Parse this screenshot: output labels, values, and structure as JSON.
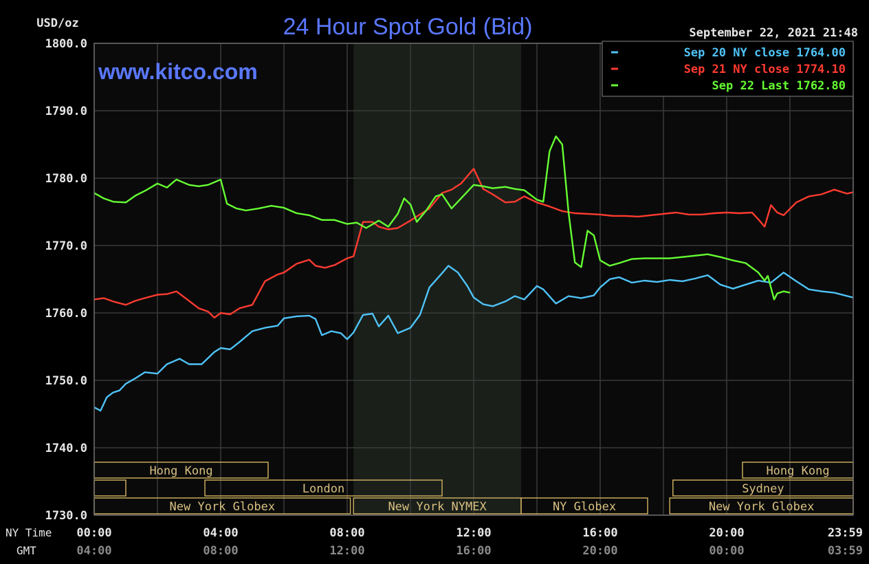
{
  "chart_data": {
    "type": "line",
    "title": "24 Hour Spot Gold (Bid)",
    "watermark": "www.kitco.com",
    "timestamp": "September 22, 2021 21:48",
    "ylabel": "USD/oz",
    "ylim": [
      1730,
      1800
    ],
    "yticks": [
      "1800.0",
      "1790.0",
      "1780.0",
      "1770.0",
      "1760.0",
      "1750.0",
      "1740.0",
      "1730.0"
    ],
    "x_row_label": "NY Time",
    "x_row2_label": "GMT",
    "x_range_hours": [
      0,
      24
    ],
    "ny_time_ticks": [
      "00:00",
      "04:00",
      "08:00",
      "12:00",
      "16:00",
      "20:00",
      "23:59"
    ],
    "gmt_ticks": [
      "04:00",
      "08:00",
      "12:00",
      "16:00",
      "20:00",
      "00:00",
      "03:59"
    ],
    "grid": true,
    "legend_position": "top-right",
    "shaded_session_hours": [
      8.2,
      13.5
    ],
    "legend": [
      {
        "label": "Sep 20 NY close 1764.00",
        "color": "#4fc3f7"
      },
      {
        "label": "Sep 21 NY close 1774.10",
        "color": "#ff3b30"
      },
      {
        "label": "Sep 22 Last 1762.80",
        "color": "#66ff33"
      }
    ],
    "series": [
      {
        "color": "#4fc3f7",
        "x": [
          0,
          0.2,
          0.4,
          0.6,
          0.8,
          1,
          1.3,
          1.6,
          2,
          2.3,
          2.7,
          3,
          3.4,
          3.8,
          4,
          4.3,
          4.6,
          5,
          5.4,
          5.8,
          6,
          6.4,
          6.8,
          7,
          7.2,
          7.5,
          7.8,
          8,
          8.2,
          8.5,
          8.8,
          9,
          9.3,
          9.6,
          10,
          10.3,
          10.6,
          11,
          11.2,
          11.5,
          11.8,
          12,
          12.3,
          12.6,
          13,
          13.3,
          13.6,
          14,
          14.2,
          14.6,
          15,
          15.4,
          15.8,
          16,
          16.3,
          16.6,
          17,
          17.4,
          17.8,
          18.2,
          18.6,
          19,
          19.4,
          19.8,
          20.2,
          20.6,
          21,
          21.4,
          21.8,
          22.2,
          22.6,
          23,
          23.4,
          23.99
        ],
        "y": [
          1746,
          1745.5,
          1747.5,
          1748.2,
          1748.5,
          1749.5,
          1750.3,
          1751.2,
          1751,
          1752.4,
          1753.2,
          1752.4,
          1752.4,
          1754.2,
          1754.8,
          1754.6,
          1755.7,
          1757.3,
          1757.8,
          1758.1,
          1759.2,
          1759.5,
          1759.6,
          1759.1,
          1756.7,
          1757.3,
          1757.0,
          1756.1,
          1757.1,
          1759.7,
          1759.9,
          1758.0,
          1759.6,
          1757.0,
          1757.8,
          1759.7,
          1763.8,
          1765.9,
          1767.0,
          1766.0,
          1764.0,
          1762.3,
          1761.3,
          1761.0,
          1761.7,
          1762.5,
          1762.0,
          1764.0,
          1763.5,
          1761.4,
          1762.5,
          1762.2,
          1762.6,
          1763.8,
          1765.0,
          1765.3,
          1764.5,
          1764.8,
          1764.6,
          1764.9,
          1764.7,
          1765.1,
          1765.6,
          1764.2,
          1763.6,
          1764.2,
          1764.8,
          1764.5,
          1766.0,
          1764.7,
          1763.5,
          1763.2,
          1763.0,
          1762.3
        ]
      },
      {
        "color": "#ff3b30",
        "x": [
          0,
          0.3,
          0.6,
          1,
          1.3,
          1.6,
          2,
          2.3,
          2.6,
          3,
          3.3,
          3.6,
          3.8,
          4,
          4.3,
          4.6,
          5,
          5.4,
          5.8,
          6,
          6.4,
          6.8,
          7,
          7.3,
          7.6,
          8,
          8.2,
          8.5,
          8.8,
          9,
          9.3,
          9.6,
          10,
          10.3,
          10.6,
          11,
          11.3,
          11.6,
          12,
          12.3,
          12.6,
          13,
          13.3,
          13.6,
          14,
          14.4,
          14.8,
          15.2,
          15.6,
          16,
          16.4,
          16.8,
          17.2,
          17.6,
          18,
          18.4,
          18.8,
          19.2,
          19.6,
          20,
          20.4,
          20.8,
          21,
          21.2,
          21.4,
          21.6,
          21.8,
          22.2,
          22.6,
          23,
          23.4,
          23.8,
          23.99
        ],
        "y": [
          1762,
          1762.2,
          1761.7,
          1761.2,
          1761.8,
          1762.2,
          1762.7,
          1762.8,
          1763.2,
          1761.8,
          1760.7,
          1760.2,
          1759.3,
          1760.0,
          1759.8,
          1760.7,
          1761.2,
          1764.7,
          1765.7,
          1766.0,
          1767.3,
          1767.9,
          1767.0,
          1766.7,
          1767.1,
          1768.1,
          1768.4,
          1773.5,
          1773.5,
          1772.8,
          1772.4,
          1772.6,
          1773.7,
          1774.6,
          1775.5,
          1777.8,
          1778.3,
          1779.2,
          1781.4,
          1778.4,
          1777.6,
          1776.4,
          1776.5,
          1777.3,
          1776.4,
          1775.8,
          1775.1,
          1774.8,
          1774.7,
          1774.6,
          1774.4,
          1774.4,
          1774.3,
          1774.5,
          1774.7,
          1774.9,
          1774.6,
          1774.6,
          1774.8,
          1774.9,
          1774.8,
          1774.9,
          1773.9,
          1772.8,
          1776.0,
          1774.9,
          1774.5,
          1776.4,
          1777.3,
          1777.6,
          1778.3,
          1777.7,
          1777.9
        ]
      },
      {
        "color": "#66ff33",
        "x": [
          0,
          0.3,
          0.6,
          1,
          1.3,
          1.6,
          2,
          2.3,
          2.6,
          3,
          3.3,
          3.6,
          4,
          4.2,
          4.5,
          4.8,
          5.2,
          5.6,
          6,
          6.4,
          6.8,
          7.2,
          7.6,
          8,
          8.3,
          8.6,
          9,
          9.3,
          9.6,
          9.8,
          10,
          10.2,
          10.5,
          10.8,
          11,
          11.3,
          11.6,
          12,
          12.3,
          12.6,
          13,
          13.3,
          13.6,
          14,
          14.2,
          14.4,
          14.6,
          14.8,
          15,
          15.2,
          15.4,
          15.6,
          15.8,
          16,
          16.3,
          16.6,
          17,
          17.4,
          17.8,
          18.2,
          18.6,
          19,
          19.4,
          19.8,
          20.2,
          20.6,
          21,
          21.2,
          21.3,
          21.5,
          21.6,
          21.8,
          22.0
        ],
        "y": [
          1777.8,
          1777.0,
          1776.5,
          1776.4,
          1777.4,
          1778.1,
          1779.2,
          1778.6,
          1779.8,
          1779.0,
          1778.8,
          1779.0,
          1779.8,
          1776.2,
          1775.5,
          1775.2,
          1775.5,
          1775.9,
          1775.6,
          1774.8,
          1774.5,
          1773.8,
          1773.8,
          1773.2,
          1773.4,
          1772.6,
          1773.7,
          1772.8,
          1774.7,
          1777.0,
          1776.1,
          1773.5,
          1775.2,
          1777.3,
          1777.6,
          1775.5,
          1777.0,
          1779.0,
          1778.8,
          1778.5,
          1778.7,
          1778.4,
          1778.2,
          1776.8,
          1776.5,
          1784.0,
          1786.2,
          1785.0,
          1774.9,
          1767.5,
          1766.8,
          1772.2,
          1771.5,
          1767.8,
          1767.0,
          1767.4,
          1768.0,
          1768.1,
          1768.1,
          1768.1,
          1768.3,
          1768.5,
          1768.7,
          1768.3,
          1767.8,
          1767.4,
          1766.0,
          1764.8,
          1765.5,
          1762.0,
          1762.9,
          1763.2,
          1763.0
        ]
      }
    ]
  },
  "sessions": {
    "row1": [
      {
        "label": "Hong Kong",
        "start": 0,
        "end": 5.5
      },
      {
        "label": "Hong Kong",
        "start": 20.5,
        "end": 24
      }
    ],
    "row2": [
      {
        "label": "",
        "start": 0,
        "end": 1.0
      },
      {
        "label": "London",
        "start": 3.5,
        "end": 11.0
      },
      {
        "label": "Sydney",
        "start": 18.3,
        "end": 24
      }
    ],
    "row3": [
      {
        "label": "New York Globex",
        "start": 0,
        "end": 8.1
      },
      {
        "label": "New York NYMEX",
        "start": 8.2,
        "end": 13.5
      },
      {
        "label": "NY Globex",
        "start": 13.5,
        "end": 17.5
      },
      {
        "label": "New York Globex",
        "start": 18.2,
        "end": 24
      }
    ]
  },
  "colors": {
    "background": "#000000",
    "plot_background": "#0a0a0a",
    "shaded_session": "#1a1f1a",
    "grid": "#3a3a3a",
    "axis_text": "#e8e8e8",
    "gmt_text": "#8a8a8a",
    "title": "#5a78ff",
    "watermark": "#5a78ff",
    "session_border": "#c8aa5a",
    "session_text": "#d8c080"
  }
}
